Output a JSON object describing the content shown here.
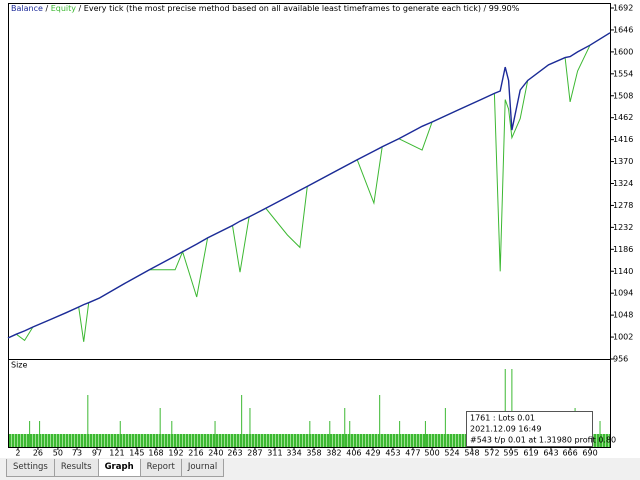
{
  "chart_data": {
    "type": "line",
    "separator": "/",
    "method": "Every tick (the most precise method based on all available least timeframes to generate each tick)",
    "quality": "99.90%",
    "x": [
      -10,
      0,
      10,
      20,
      40,
      60,
      75,
      81,
      87,
      100,
      130,
      160,
      191,
      200,
      217,
      230,
      260,
      269,
      280,
      300,
      326,
      341,
      350,
      380,
      410,
      430,
      440,
      460,
      488,
      500,
      530,
      560,
      575,
      582,
      588,
      592,
      596,
      606,
      615,
      640,
      660,
      666,
      675,
      690,
      714
    ],
    "series": [
      {
        "name": "Balance",
        "color": "#1c2a99",
        "values": [
          1000,
          1008,
          1015,
          1023,
          1038,
          1053,
          1065,
          1070,
          1074,
          1084,
          1114,
          1143,
          1172,
          1181,
          1197,
          1210,
          1236,
          1245,
          1254,
          1272,
          1296,
          1310,
          1318,
          1346,
          1374,
          1392,
          1401,
          1418,
          1444,
          1453,
          1477,
          1501,
          1513,
          1518,
          1568,
          1540,
          1436,
          1520,
          1540,
          1573,
          1588,
          1590,
          1600,
          1614,
          1640
        ]
      },
      {
        "name": "Equity",
        "color": "#3cb832",
        "values": [
          1000,
          1008,
          995,
          1023,
          1038,
          1053,
          1065,
          992,
          1074,
          1084,
          1114,
          1143,
          1143,
          1181,
          1086,
          1210,
          1236,
          1138,
          1254,
          1272,
          1216,
          1190,
          1318,
          1346,
          1374,
          1283,
          1401,
          1418,
          1394,
          1453,
          1477,
          1501,
          1513,
          1140,
          1500,
          1480,
          1420,
          1460,
          1540,
          1573,
          1588,
          1495,
          1560,
          1614,
          1640
        ]
      }
    ],
    "xlim": [
      -10,
      714
    ],
    "xticks": [
      2,
      26,
      50,
      73,
      97,
      121,
      145,
      168,
      192,
      216,
      240,
      263,
      287,
      311,
      334,
      358,
      382,
      406,
      429,
      453,
      477,
      500,
      524,
      548,
      572,
      595,
      619,
      643,
      666,
      690
    ],
    "ylim": [
      956,
      1692
    ],
    "yticks": [
      1692,
      1646,
      1600,
      1554,
      1508,
      1462,
      1416,
      1370,
      1324,
      1278,
      1232,
      1186,
      1140,
      1094,
      1048,
      1002,
      956
    ],
    "size": {
      "name": "Size",
      "color": "#3cb832",
      "x": [
        16,
        28,
        86,
        125,
        173,
        187,
        239,
        271,
        281,
        353,
        377,
        395,
        401,
        437,
        461,
        492,
        516,
        558,
        588,
        596,
        606,
        620,
        636,
        654,
        672,
        684,
        702
      ],
      "values": [
        0.02,
        0.02,
        0.04,
        0.02,
        0.03,
        0.02,
        0.02,
        0.04,
        0.03,
        0.02,
        0.02,
        0.03,
        0.02,
        0.04,
        0.02,
        0.02,
        0.03,
        0.02,
        0.06,
        0.06,
        0.02,
        0.02,
        0.02,
        0.02,
        0.03,
        0.02,
        0.02
      ],
      "ylim": [
        0,
        0.07
      ]
    }
  },
  "tooltip": {
    "lines": [
      "1761 : Lots 0.01",
      "2021.12.09 16:49",
      "#543 t/p 0.01 at 1.31980 profit 0.80"
    ]
  },
  "tabs": [
    "Settings",
    "Results",
    "Graph",
    "Report",
    "Journal"
  ],
  "active_tab": 2
}
